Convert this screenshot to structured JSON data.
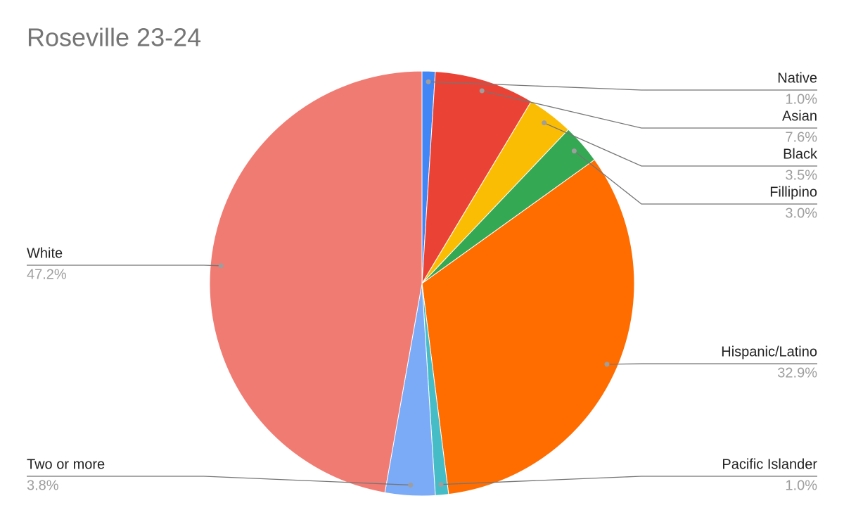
{
  "chart_data": {
    "type": "pie",
    "title": "Roseville 23-24",
    "categories": [
      "Native",
      "Asian",
      "Black",
      "Fillipino",
      "Hispanic/Latino",
      "Pacific Islander",
      "Two or more",
      "White"
    ],
    "values": [
      1.0,
      7.6,
      3.5,
      3.0,
      32.9,
      1.0,
      3.8,
      47.2
    ],
    "value_labels": [
      "1.0%",
      "7.6%",
      "3.5%",
      "3.0%",
      "32.9%",
      "1.0%",
      "3.8%",
      "47.2%"
    ],
    "colors": [
      "#4285f4",
      "#ea4335",
      "#fbbc04",
      "#34a853",
      "#ff6d01",
      "#46bdc6",
      "#7baaf7",
      "#f07b72"
    ]
  }
}
